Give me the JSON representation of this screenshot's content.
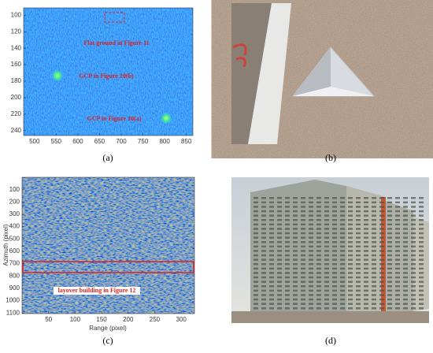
{
  "panels": {
    "a": {
      "caption": "(a)",
      "xticks": [
        500,
        550,
        600,
        650,
        700,
        750,
        800,
        850
      ],
      "xlim": [
        475,
        865
      ],
      "yticks": [
        100,
        120,
        140,
        160,
        180,
        200,
        220,
        240
      ],
      "ylim": [
        91,
        246
      ],
      "annotations": [
        "Flat ground in Figure 11",
        "GCP in Figure 10(b)",
        "GCP in Figure 10(a)"
      ]
    },
    "b": {
      "caption": "(b)"
    },
    "c": {
      "caption": "(c)",
      "xlabel": "Range (pixel)",
      "ylabel": "Azimuth (pixel)",
      "xticks": [
        50,
        100,
        150,
        200,
        250,
        300
      ],
      "xlim": [
        0,
        325
      ],
      "yticks": [
        100,
        200,
        300,
        400,
        500,
        600,
        700,
        800,
        900,
        1000,
        1100
      ],
      "ylim": [
        0,
        1105
      ],
      "annotation": "layover building in Figure 12"
    },
    "d": {
      "caption": "(d)"
    }
  }
}
